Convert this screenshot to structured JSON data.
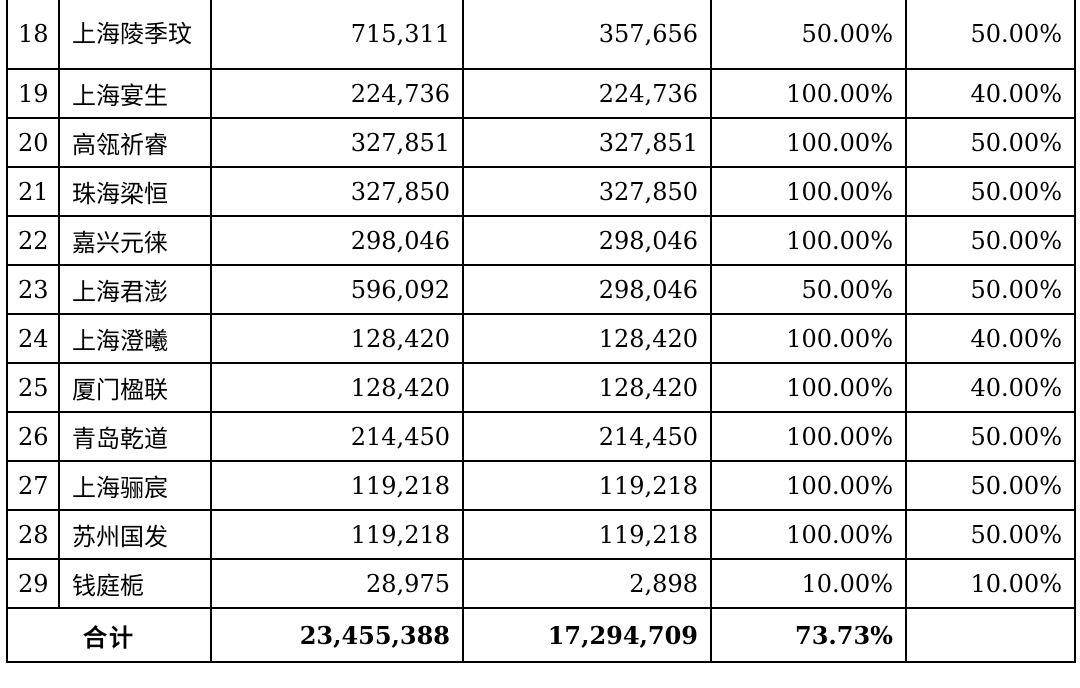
{
  "rows": [
    {
      "no": "18",
      "name": "上海陵季玟",
      "total": "715,311",
      "subscribed": "357,656",
      "ratio": "50.00%",
      "share": "50.00%"
    },
    {
      "no": "19",
      "name": "上海宴生",
      "total": "224,736",
      "subscribed": "224,736",
      "ratio": "100.00%",
      "share": "40.00%"
    },
    {
      "no": "20",
      "name": "高瓴祈睿",
      "total": "327,851",
      "subscribed": "327,851",
      "ratio": "100.00%",
      "share": "50.00%"
    },
    {
      "no": "21",
      "name": "珠海梁恒",
      "total": "327,850",
      "subscribed": "327,850",
      "ratio": "100.00%",
      "share": "50.00%"
    },
    {
      "no": "22",
      "name": "嘉兴元徕",
      "total": "298,046",
      "subscribed": "298,046",
      "ratio": "100.00%",
      "share": "50.00%"
    },
    {
      "no": "23",
      "name": "上海君澎",
      "total": "596,092",
      "subscribed": "298,046",
      "ratio": "50.00%",
      "share": "50.00%"
    },
    {
      "no": "24",
      "name": "上海澄曦",
      "total": "128,420",
      "subscribed": "128,420",
      "ratio": "100.00%",
      "share": "40.00%"
    },
    {
      "no": "25",
      "name": "厦门楹联",
      "total": "128,420",
      "subscribed": "128,420",
      "ratio": "100.00%",
      "share": "40.00%"
    },
    {
      "no": "26",
      "name": "青岛乾道",
      "total": "214,450",
      "subscribed": "214,450",
      "ratio": "100.00%",
      "share": "50.00%"
    },
    {
      "no": "27",
      "name": "上海骊宸",
      "total": "119,218",
      "subscribed": "119,218",
      "ratio": "100.00%",
      "share": "50.00%"
    },
    {
      "no": "28",
      "name": "苏州国发",
      "total": "119,218",
      "subscribed": "119,218",
      "ratio": "100.00%",
      "share": "50.00%"
    },
    {
      "no": "29",
      "name": "钱庭栀",
      "total": "28,975",
      "subscribed": "2,898",
      "ratio": "10.00%",
      "share": "10.00%"
    }
  ],
  "total_row": {
    "label": "合计",
    "total": "23,455,388",
    "subscribed": "17,294,709",
    "ratio": "73.73%",
    "share": ""
  }
}
